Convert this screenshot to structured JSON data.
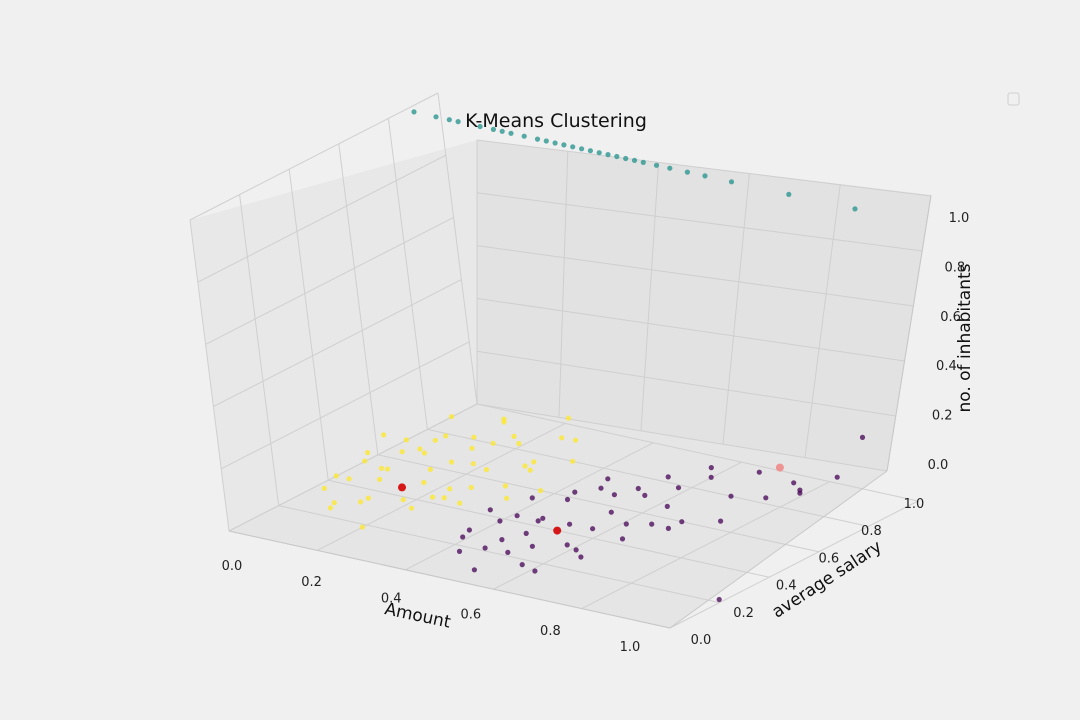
{
  "chart_data": {
    "type": "scatter",
    "projection": "3d",
    "title": "K-Means Clustering",
    "xlabel": "Amount",
    "ylabel": "average salary",
    "zlabel": "no. of inhabitants",
    "xlim": [
      0,
      1
    ],
    "ylim": [
      0,
      1
    ],
    "zlim": [
      0,
      1
    ],
    "xticks": [
      "0.0",
      "0.2",
      "0.4",
      "0.6",
      "0.8",
      "1.0"
    ],
    "yticks": [
      "0.0",
      "0.2",
      "0.4",
      "0.6",
      "0.8",
      "1.0"
    ],
    "zticks": [
      "0.0",
      "0.2",
      "0.4",
      "0.6",
      "0.8",
      "1.0"
    ],
    "grid": true,
    "legend": {
      "position": "top-right",
      "entries": []
    },
    "colors": {
      "cluster_yellow": "#fde725",
      "cluster_purple": "#440154",
      "cluster_teal": "#21918c",
      "centroid": "#d40000",
      "centroid_light": "#f08a8a"
    },
    "series": [
      {
        "color": "#fde725",
        "points": [
          [
            0.05,
            0.3,
            0.03
          ],
          [
            0.08,
            0.35,
            0.05
          ],
          [
            0.1,
            0.25,
            0.02
          ],
          [
            0.12,
            0.4,
            0.04
          ],
          [
            0.06,
            0.45,
            0.06
          ],
          [
            0.15,
            0.3,
            0.03
          ],
          [
            0.18,
            0.5,
            0.05
          ],
          [
            0.2,
            0.35,
            0.02
          ],
          [
            0.14,
            0.55,
            0.07
          ],
          [
            0.22,
            0.6,
            0.04
          ],
          [
            0.25,
            0.45,
            0.03
          ],
          [
            0.1,
            0.6,
            0.05
          ],
          [
            0.28,
            0.55,
            0.06
          ],
          [
            0.3,
            0.4,
            0.02
          ],
          [
            0.16,
            0.7,
            0.03
          ],
          [
            0.24,
            0.75,
            0.05
          ],
          [
            0.2,
            0.8,
            0.04
          ],
          [
            0.32,
            0.65,
            0.03
          ],
          [
            0.35,
            0.5,
            0.05
          ],
          [
            0.12,
            0.2,
            0.03
          ],
          [
            0.26,
            0.28,
            0.04
          ],
          [
            0.08,
            0.5,
            0.02
          ],
          [
            0.04,
            0.65,
            0.04
          ],
          [
            0.18,
            0.22,
            0.06
          ],
          [
            0.3,
            0.7,
            0.03
          ],
          [
            0.34,
            0.6,
            0.07
          ],
          [
            0.22,
            0.15,
            0.02
          ],
          [
            0.15,
            0.85,
            0.05
          ],
          [
            0.28,
            0.85,
            0.04
          ],
          [
            0.36,
            0.75,
            0.03
          ],
          [
            0.06,
            0.8,
            0.06
          ],
          [
            0.12,
            0.9,
            0.03
          ],
          [
            0.24,
            0.95,
            0.05
          ],
          [
            0.1,
            0.4,
            0.12
          ],
          [
            0.2,
            0.5,
            0.15
          ],
          [
            0.05,
            0.55,
            0.1
          ],
          [
            0.3,
            0.3,
            0.08
          ],
          [
            0.14,
            0.38,
            0.09
          ],
          [
            0.26,
            0.62,
            0.11
          ],
          [
            0.18,
            0.68,
            0.08
          ],
          [
            0.02,
            0.4,
            0.02
          ],
          [
            0.38,
            0.45,
            0.04
          ],
          [
            0.4,
            0.55,
            0.03
          ],
          [
            0.27,
            0.5,
            0.02
          ],
          [
            0.09,
            0.72,
            0.04
          ],
          [
            0.33,
            0.82,
            0.06
          ],
          [
            0.21,
            0.42,
            0.05
          ],
          [
            0.17,
            0.6,
            0.03
          ],
          [
            0.07,
            0.58,
            0.04
          ],
          [
            0.29,
            0.36,
            0.05
          ]
        ]
      },
      {
        "color": "#440154",
        "points": [
          [
            0.42,
            0.2,
            0.03
          ],
          [
            0.45,
            0.3,
            0.05
          ],
          [
            0.48,
            0.25,
            0.02
          ],
          [
            0.5,
            0.15,
            0.04
          ],
          [
            0.52,
            0.35,
            0.06
          ],
          [
            0.55,
            0.4,
            0.03
          ],
          [
            0.58,
            0.2,
            0.05
          ],
          [
            0.6,
            0.3,
            0.02
          ],
          [
            0.62,
            0.45,
            0.07
          ],
          [
            0.65,
            0.25,
            0.04
          ],
          [
            0.68,
            0.5,
            0.03
          ],
          [
            0.7,
            0.35,
            0.05
          ],
          [
            0.44,
            0.45,
            0.06
          ],
          [
            0.46,
            0.55,
            0.02
          ],
          [
            0.54,
            0.6,
            0.04
          ],
          [
            0.58,
            0.65,
            0.03
          ],
          [
            0.63,
            0.7,
            0.05
          ],
          [
            0.66,
            0.6,
            0.04
          ],
          [
            0.72,
            0.55,
            0.03
          ],
          [
            0.75,
            0.7,
            0.06
          ],
          [
            0.78,
            0.6,
            0.03
          ],
          [
            0.8,
            0.75,
            0.05
          ],
          [
            0.47,
            0.1,
            0.04
          ],
          [
            0.53,
            0.05,
            0.02
          ],
          [
            0.57,
            0.12,
            0.06
          ],
          [
            0.64,
            0.1,
            0.03
          ],
          [
            0.4,
            0.35,
            0.05
          ],
          [
            0.43,
            0.4,
            0.02
          ],
          [
            0.51,
            0.5,
            0.08
          ],
          [
            0.56,
            0.52,
            0.1
          ],
          [
            0.61,
            0.58,
            0.09
          ],
          [
            0.67,
            0.42,
            0.06
          ],
          [
            0.73,
            0.48,
            0.04
          ],
          [
            0.49,
            0.38,
            0.03
          ],
          [
            0.59,
            0.42,
            0.02
          ],
          [
            0.69,
            0.2,
            0.05
          ],
          [
            0.45,
            0.18,
            0.07
          ],
          [
            0.52,
            0.28,
            0.04
          ],
          [
            0.6,
            0.12,
            0.03
          ],
          [
            0.82,
            0.85,
            0.04
          ],
          [
            0.85,
            0.8,
            0.06
          ],
          [
            0.88,
            0.9,
            0.08
          ],
          [
            0.9,
            0.7,
            0.15
          ],
          [
            0.92,
            0.95,
            0.2
          ],
          [
            1.0,
            0.2,
            0.01
          ],
          [
            0.62,
            0.85,
            0.05
          ],
          [
            0.7,
            0.9,
            0.04
          ],
          [
            0.56,
            0.78,
            0.03
          ],
          [
            0.48,
            0.68,
            0.04
          ],
          [
            0.66,
            0.78,
            0.06
          ]
        ]
      },
      {
        "color": "#21918c",
        "points": [
          [
            0.0,
            0.9,
            0.98
          ],
          [
            0.05,
            0.9,
            0.98
          ],
          [
            0.08,
            0.9,
            0.98
          ],
          [
            0.1,
            0.9,
            0.98
          ],
          [
            0.15,
            0.9,
            0.98
          ],
          [
            0.18,
            0.9,
            0.98
          ],
          [
            0.2,
            0.9,
            0.98
          ],
          [
            0.22,
            0.9,
            0.98
          ],
          [
            0.25,
            0.9,
            0.98
          ],
          [
            0.28,
            0.9,
            0.98
          ],
          [
            0.3,
            0.9,
            0.98
          ],
          [
            0.32,
            0.9,
            0.98
          ],
          [
            0.34,
            0.9,
            0.98
          ],
          [
            0.36,
            0.9,
            0.98
          ],
          [
            0.38,
            0.9,
            0.98
          ],
          [
            0.4,
            0.9,
            0.98
          ],
          [
            0.42,
            0.9,
            0.98
          ],
          [
            0.44,
            0.9,
            0.98
          ],
          [
            0.46,
            0.9,
            0.98
          ],
          [
            0.48,
            0.9,
            0.98
          ],
          [
            0.5,
            0.9,
            0.98
          ],
          [
            0.52,
            0.9,
            0.98
          ],
          [
            0.55,
            0.9,
            0.98
          ],
          [
            0.58,
            0.9,
            0.98
          ],
          [
            0.62,
            0.9,
            0.98
          ],
          [
            0.66,
            0.9,
            0.98
          ],
          [
            0.72,
            0.9,
            0.98
          ],
          [
            0.85,
            0.9,
            0.98
          ],
          [
            1.0,
            0.9,
            0.98
          ]
        ]
      }
    ],
    "centroids": [
      {
        "color": "#d40000",
        "point": [
          0.17,
          0.4,
          0.03
        ]
      },
      {
        "color": "#d40000",
        "point": [
          0.55,
          0.35,
          0.03
        ]
      },
      {
        "color": "#f08a8a",
        "point": [
          0.78,
          0.85,
          0.1
        ]
      }
    ]
  }
}
